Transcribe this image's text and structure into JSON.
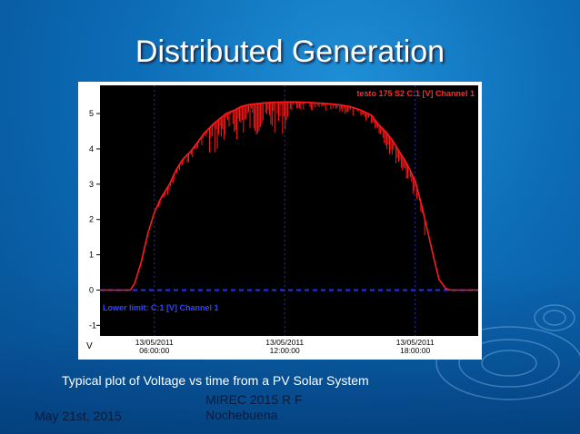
{
  "slide": {
    "title": "Distributed Generation",
    "caption": "Typical plot of Voltage vs time from a PV Solar System",
    "footer_date": "May 21st, 2015",
    "footer_center_line1": "MIREC 2015 R F",
    "footer_center_line2": "Nochebuena"
  },
  "chart_data": {
    "type": "line",
    "series_label": "testo 175 S2 C:1 [V] Channel 1",
    "lower_limit_label": "Lower limit: C:1 [V] Channel 1",
    "ylabel": "V",
    "y_ticks": [
      "5",
      "4",
      "3",
      "2",
      "1",
      "0",
      "-1"
    ],
    "x_ticks": [
      {
        "date": "13/05/2011",
        "time": "06:00:00"
      },
      {
        "date": "13/05/2011",
        "time": "12:00:00"
      },
      {
        "date": "13/05/2011",
        "time": "18:00:00"
      }
    ],
    "xlim_hours": [
      3.5,
      20.9
    ],
    "ylim": [
      -1.3,
      5.8
    ],
    "lower_limit_value": 0,
    "series": [
      {
        "name": "testo 175 S2 C:1 [V] Channel 1",
        "x": [
          3.5,
          4.9,
          5.1,
          5.4,
          5.7,
          6.0,
          6.3,
          6.7,
          7.0,
          7.3,
          7.7,
          8.0,
          8.3,
          8.7,
          9.0,
          9.3,
          9.7,
          10.0,
          10.3,
          10.7,
          11.0,
          11.5,
          12.0,
          12.5,
          13.0,
          13.5,
          14.0,
          14.5,
          15.0,
          15.5,
          16.0,
          16.3,
          16.7,
          17.0,
          17.3,
          17.6,
          18.0,
          18.3,
          18.6,
          18.9,
          19.1,
          19.4,
          19.6,
          20.9
        ],
        "y": [
          0.0,
          0.0,
          0.2,
          0.8,
          1.6,
          2.2,
          2.6,
          3.0,
          3.4,
          3.7,
          3.95,
          4.2,
          4.45,
          4.7,
          4.85,
          5.0,
          5.1,
          5.2,
          5.25,
          5.28,
          5.3,
          5.32,
          5.33,
          5.33,
          5.32,
          5.3,
          5.28,
          5.25,
          5.2,
          5.1,
          4.95,
          4.7,
          4.45,
          4.2,
          3.9,
          3.6,
          3.1,
          2.4,
          1.6,
          0.8,
          0.3,
          0.05,
          0.0,
          0.0
        ]
      }
    ],
    "line_color": "#ff1a1a",
    "limit_color": "#2233ff",
    "grid": "vertical dashed at tick times"
  }
}
